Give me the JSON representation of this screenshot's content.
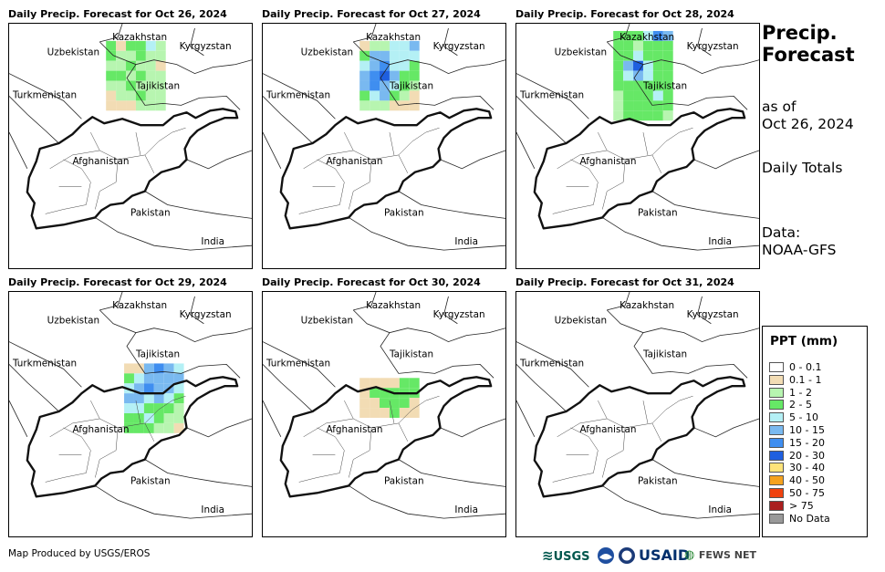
{
  "panels": [
    {
      "title": "Daily Precip. Forecast for Oct 26, 2024",
      "rain": [
        [
          3,
          1,
          3,
          3,
          4,
          2
        ],
        [
          3,
          2,
          2,
          3,
          2,
          2
        ],
        [
          2,
          2,
          3,
          2,
          2,
          1
        ],
        [
          3,
          3,
          2,
          3,
          2,
          2
        ],
        [
          2,
          2,
          3,
          2,
          2,
          2
        ],
        [
          1,
          2,
          2,
          3,
          2,
          2
        ],
        [
          1,
          1,
          1,
          2,
          2,
          2
        ]
      ]
    },
    {
      "title": "Daily Precip. Forecast for Oct 27, 2024",
      "rain": [
        [
          1,
          2,
          2,
          4,
          4,
          5
        ],
        [
          3,
          5,
          5,
          4,
          4,
          4
        ],
        [
          4,
          5,
          6,
          4,
          4,
          3
        ],
        [
          5,
          6,
          7,
          5,
          3,
          3
        ],
        [
          5,
          6,
          5,
          4,
          3,
          2
        ],
        [
          3,
          4,
          5,
          3,
          2,
          1
        ],
        [
          2,
          2,
          2,
          1,
          1,
          1
        ]
      ]
    },
    {
      "title": "Daily Precip. Forecast for Oct 28, 2024",
      "rain": [
        [
          3,
          3,
          3,
          4,
          6,
          5
        ],
        [
          3,
          3,
          2,
          3,
          3,
          3
        ],
        [
          3,
          3,
          4,
          3,
          3,
          3
        ],
        [
          3,
          5,
          7,
          4,
          3,
          3
        ],
        [
          3,
          4,
          5,
          4,
          3,
          3
        ],
        [
          3,
          3,
          3,
          3,
          3,
          3
        ],
        [
          2,
          3,
          3,
          3,
          4,
          3
        ],
        [
          2,
          3,
          3,
          3,
          3,
          3
        ],
        [
          2,
          3,
          3,
          3,
          3,
          2
        ]
      ]
    },
    {
      "title": "Daily Precip. Forecast for Oct 29, 2024",
      "rain": [
        [
          1,
          1,
          5,
          6,
          5,
          4
        ],
        [
          3,
          4,
          5,
          5,
          5,
          5
        ],
        [
          4,
          5,
          6,
          5,
          5,
          4
        ],
        [
          5,
          5,
          4,
          5,
          4,
          3
        ],
        [
          4,
          4,
          3,
          3,
          3,
          2
        ],
        [
          3,
          3,
          4,
          3,
          2,
          2
        ],
        [
          3,
          3,
          3,
          2,
          2,
          1
        ]
      ]
    },
    {
      "title": "Daily Precip. Forecast for Oct 30, 2024",
      "rain": [
        [
          1,
          1,
          1,
          1,
          3,
          3
        ],
        [
          1,
          3,
          3,
          3,
          3,
          3
        ],
        [
          1,
          1,
          3,
          3,
          3,
          1
        ],
        [
          1,
          1,
          1,
          3,
          1,
          1
        ]
      ]
    },
    {
      "title": "Daily Precip. Forecast for Oct 31, 2024",
      "rain": []
    }
  ],
  "map_labels": {
    "kazakhstan": "Kazakhstan",
    "kyrgyzstan": "Kyrgyzstan",
    "uzbekistan": "Uzbekistan",
    "tajikistan": "Tajikistan",
    "turkmenistan": "Turkmenistan",
    "afghanistan": "Afghanistan",
    "pakistan": "Pakistan",
    "india": "India"
  },
  "side": {
    "title_line1": "Precip.",
    "title_line2": "Forecast",
    "asof_line1": "as of",
    "asof_line2": "Oct 26, 2024",
    "daily": "Daily Totals",
    "data_line1": "Data:",
    "data_line2": "NOAA-GFS"
  },
  "legend": {
    "title": "PPT (mm)",
    "items": [
      {
        "label": "0 - 0.1",
        "color": "#ffffff"
      },
      {
        "label": "0.1 - 1",
        "color": "#f2dcb4"
      },
      {
        "label": "1 - 2",
        "color": "#b7f5b0"
      },
      {
        "label": "2 - 5",
        "color": "#66e866"
      },
      {
        "label": "5 - 10",
        "color": "#b4f0f5"
      },
      {
        "label": "10 - 15",
        "color": "#79b9f0"
      },
      {
        "label": "15 - 20",
        "color": "#3f8ef0"
      },
      {
        "label": "20 - 30",
        "color": "#1f5fe0"
      },
      {
        "label": "30 - 40",
        "color": "#fde37a"
      },
      {
        "label": "40 - 50",
        "color": "#f5a21e"
      },
      {
        "label": "50 - 75",
        "color": "#f0420f"
      },
      {
        "label": "> 75",
        "color": "#aa1f1f"
      },
      {
        "label": "No Data",
        "color": "#999999"
      }
    ]
  },
  "footer": {
    "credit": "Map Produced by USGS/EROS",
    "logo_usgs": "USGS",
    "logo_usaid": "USAID",
    "logo_fews": "FEWS NET"
  }
}
